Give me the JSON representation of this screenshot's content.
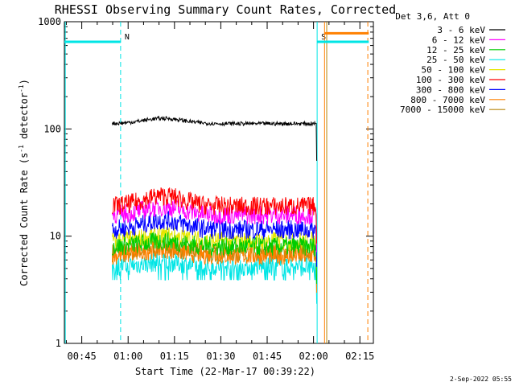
{
  "chart_data": {
    "type": "line",
    "title": "RHESSI Observing Summary Count Rates, Corrected",
    "xlabel": "Start Time (22-Mar-17 00:39:22)",
    "ylabel_main": "Corrected Count Rate (s",
    "ylabel_sup1": "-1",
    "ylabel_mid": " detector",
    "ylabel_sup2": "-1",
    "ylabel_end": ")",
    "y_scale": "log",
    "ylim": [
      1,
      1000
    ],
    "xlim_minutes": [
      0,
      100
    ],
    "x_tick_labels": [
      "00:45",
      "01:00",
      "01:15",
      "01:30",
      "01:45",
      "02:00",
      "02:15"
    ],
    "x_tick_minutes": [
      5.63,
      20.63,
      35.63,
      50.63,
      65.63,
      80.63,
      95.63
    ],
    "y_tick_labels": [
      "1",
      "10",
      "100",
      "1000"
    ],
    "y_tick_values": [
      1,
      10,
      100,
      1000
    ],
    "legend_header": "Det 3,6, Att 0",
    "legend_position": "right",
    "series": [
      {
        "name": "3 - 6 keV",
        "color": "#000000",
        "level": 112,
        "start": 15.5,
        "end": 81.5,
        "bump": 1.12
      },
      {
        "name": "6 - 12 keV",
        "color": "#ff00ff",
        "level": 15.8,
        "start": 15.5,
        "end": 81.5,
        "bump": 1.18
      },
      {
        "name": "12 - 25 keV",
        "color": "#00cc00",
        "level": 8.0,
        "start": 15.5,
        "end": 81.5,
        "bump": 1.12
      },
      {
        "name": "25 - 50 keV",
        "color": "#00e5e5",
        "level": 5.2,
        "start": 15.5,
        "end": 81.5,
        "bump": 1.1
      },
      {
        "name": "50 - 100 keV",
        "color": "#e6e600",
        "level": 9.0,
        "start": 15.5,
        "end": 81.5,
        "bump": 1.12
      },
      {
        "name": "100 - 300 keV",
        "color": "#ff0000",
        "level": 19.0,
        "start": 15.5,
        "end": 81.5,
        "bump": 1.25
      },
      {
        "name": "300 - 800 keV",
        "color": "#0000ff",
        "level": 11.5,
        "start": 15.5,
        "end": 81.5,
        "bump": 1.22
      },
      {
        "name": "800 - 7000 keV",
        "color": "#ff8000",
        "level": 6.6,
        "start": 15.5,
        "end": 81.5,
        "bump": 1.15
      },
      {
        "name": "7000 - 15000 keV",
        "color": "#b8860b",
        "level": 7.0,
        "start": 15.5,
        "end": 81.5,
        "bump": 1.1
      }
    ],
    "flag_bars": [
      {
        "color": "#00e5e5",
        "start": 0,
        "end": 18.2,
        "value": 650
      },
      {
        "color": "#00e5e5",
        "start": 81.8,
        "end": 98.5,
        "value": 650
      },
      {
        "color": "#ff8000",
        "start": 84.2,
        "end": 98.5,
        "value": 780
      }
    ],
    "vertical_markers": [
      {
        "color": "#00e5e5",
        "minute": 0.3,
        "style": "solid"
      },
      {
        "color": "#00e5e5",
        "minute": 18.2,
        "style": "dash",
        "label": "N"
      },
      {
        "color": "#00e5e5",
        "minute": 81.8,
        "style": "solid",
        "label": "S",
        "label_color": "#ff8000"
      },
      {
        "color": "#ff8000",
        "minute": 84.2,
        "style": "solid"
      },
      {
        "color": "#b8860b",
        "minute": 84.9,
        "style": "solid"
      },
      {
        "color": "#ff8000",
        "minute": 98.2,
        "style": "dash"
      }
    ],
    "timestamp": "2-Sep-2022 05:55"
  }
}
